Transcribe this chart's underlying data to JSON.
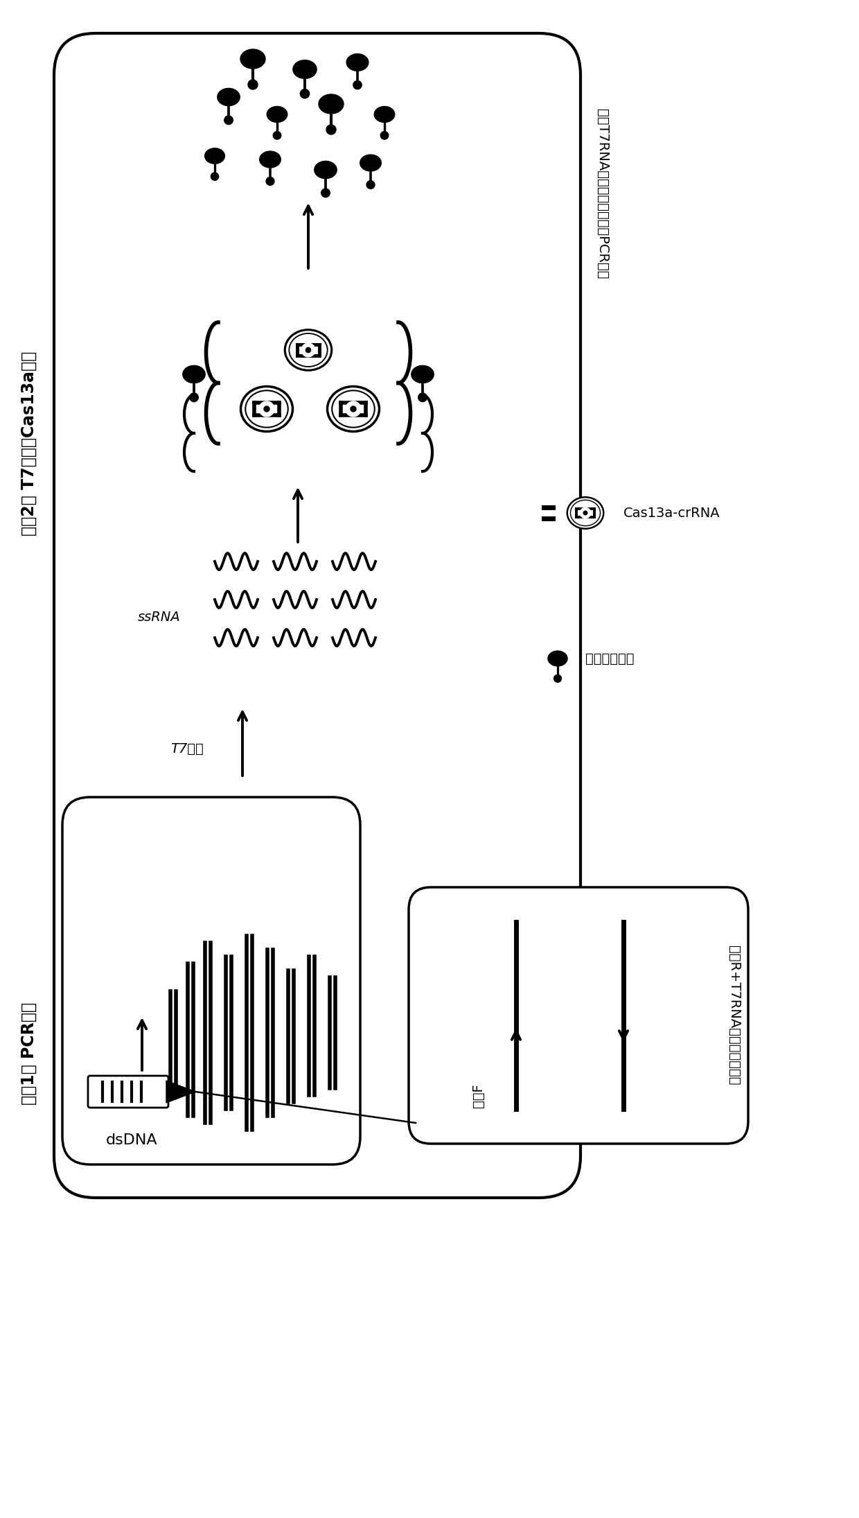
{
  "bg_color": "#ffffff",
  "step1_label": "步骤1： PCR扩增",
  "step2_label": "步骤2： T7转录和Cas13a检测",
  "t7_label": "T7转录",
  "ssrna_label": "ssRNA",
  "dsdna_label": "dsDNA",
  "legend1": "带有T7RNA聚合酶识别序列的PCR产物",
  "legend2": "Cas13a-crRNA",
  "legend3": "切割报导基因",
  "primer_f": "引物F",
  "primer_r": "引物R+T7RNA聚合酶识别序列"
}
